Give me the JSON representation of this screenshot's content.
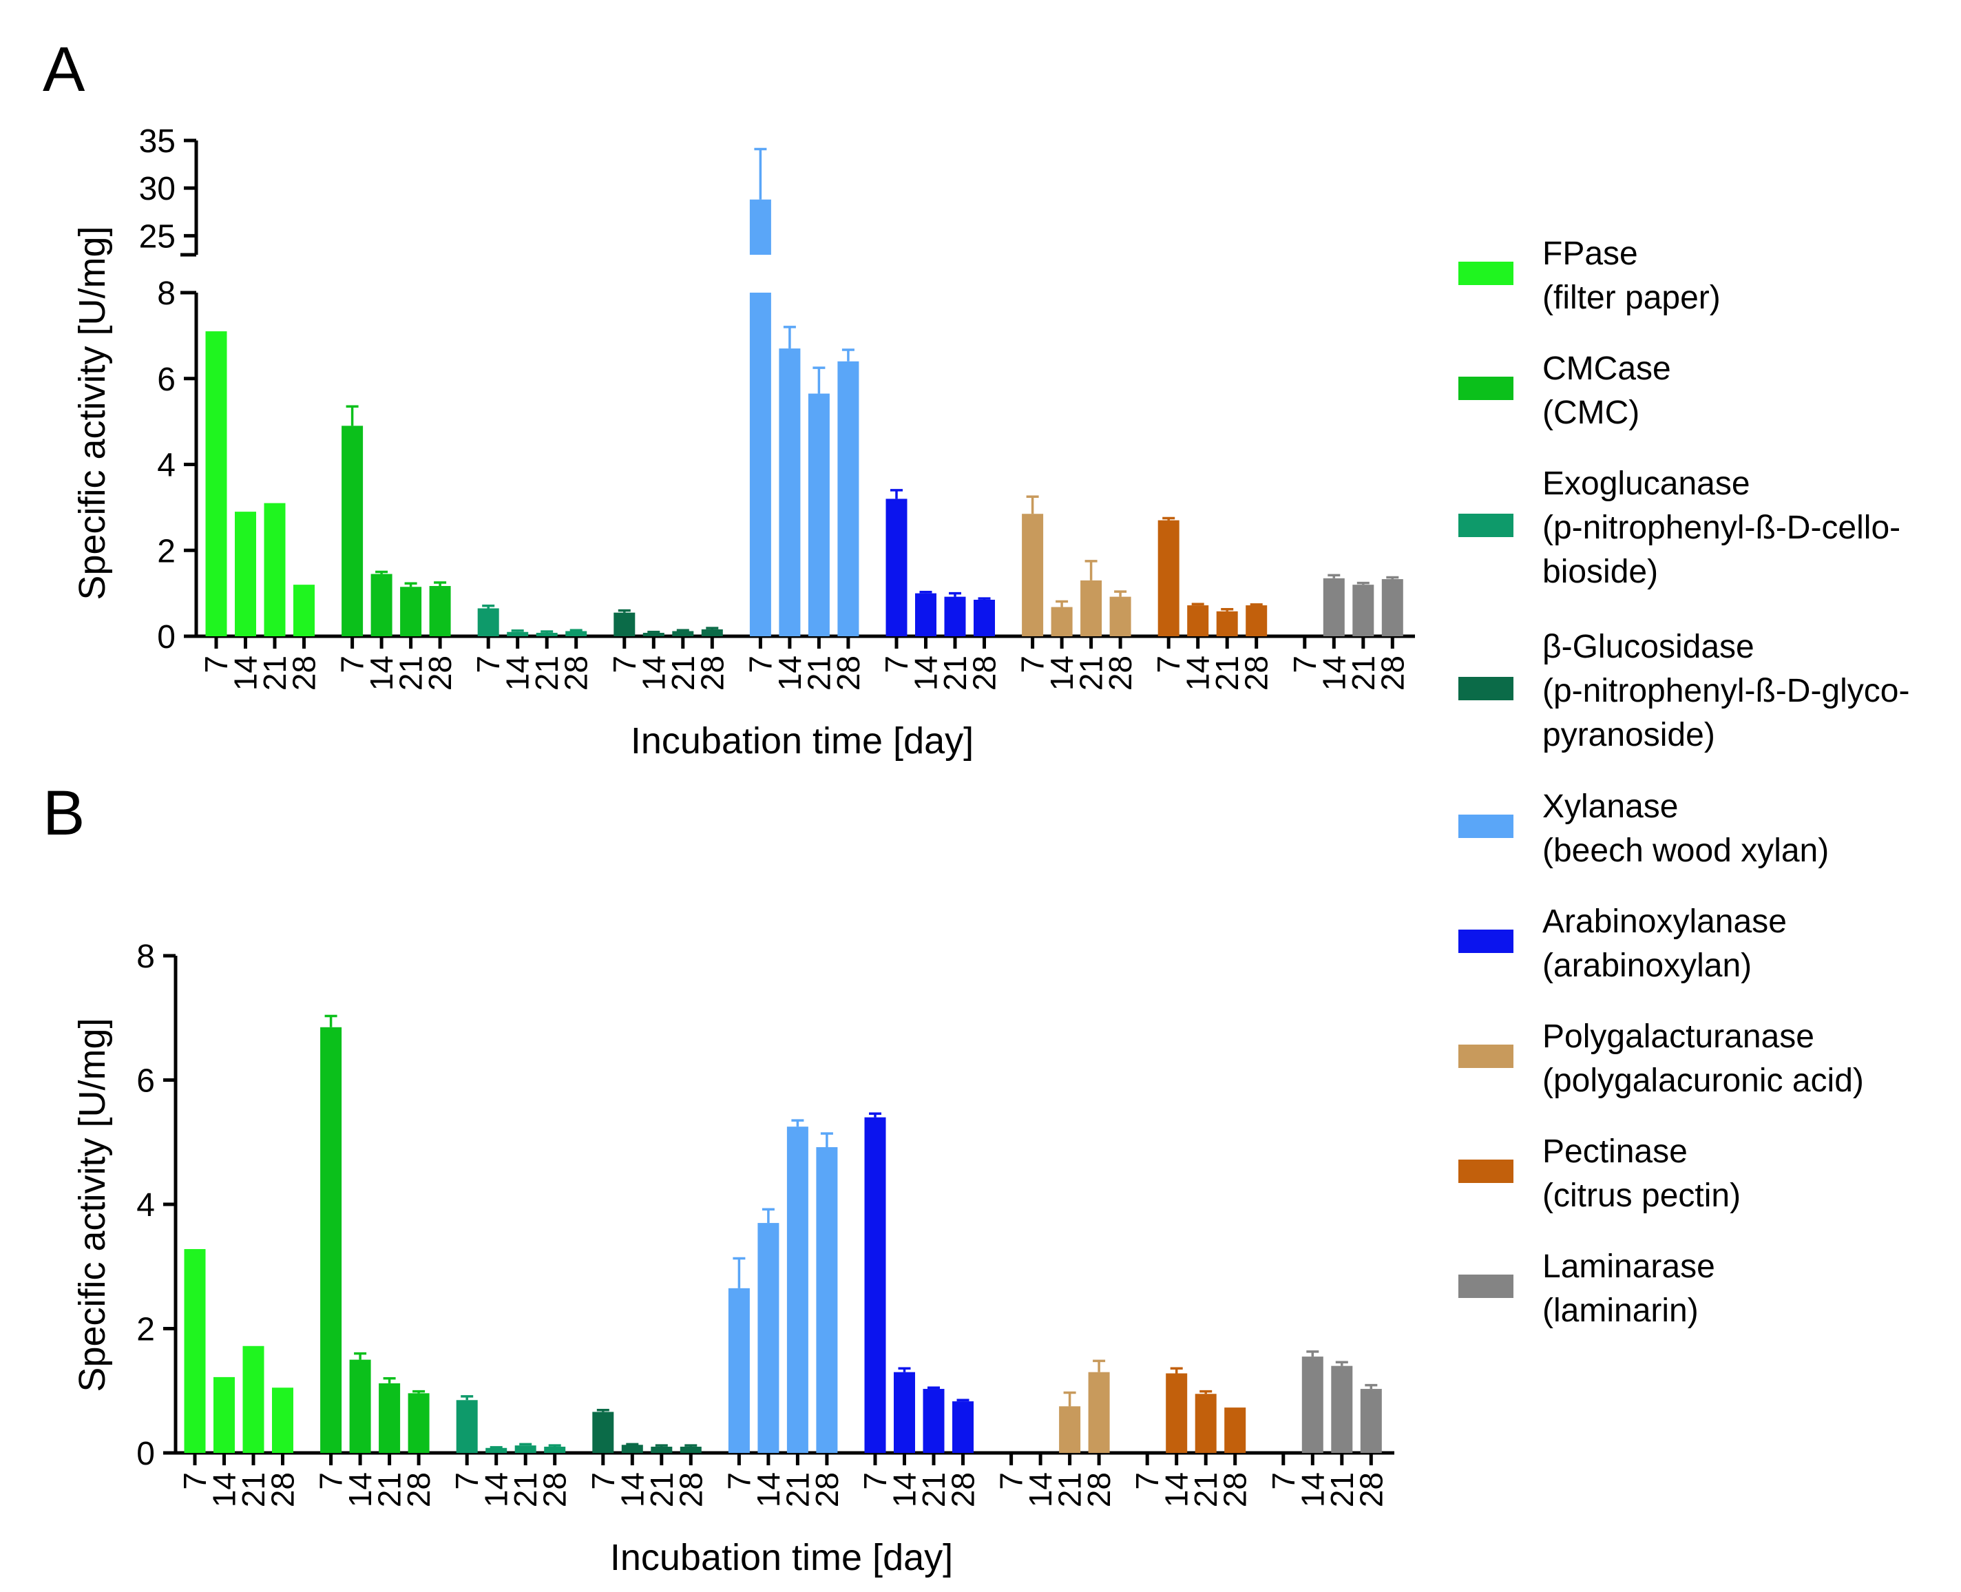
{
  "figure": {
    "panels": [
      "A",
      "B"
    ],
    "ylabel": "Specific activity [U/mg]",
    "xlabel": "Incubation time [day]"
  },
  "legend": [
    {
      "name": "FPase",
      "substrate": "(filter paper)",
      "color": "#1ff51f"
    },
    {
      "name": "CMCase",
      "substrate": "(CMC)",
      "color": "#0bc01b"
    },
    {
      "name": "Exoglucanase",
      "substrate": "(p-nitrophenyl-ß-D-cello-",
      "substrate_line2": "bioside)",
      "color": "#0e9a6a"
    },
    {
      "name": "β-Glucosidase",
      "substrate": "(p-nitrophenyl-ß-D-glyco-",
      "substrate_line2": "pyranoside)",
      "color": "#0b6b48"
    },
    {
      "name": "Xylanase",
      "substrate": "(beech wood xylan)",
      "color": "#5aa6f8"
    },
    {
      "name": "Arabinoxylanase",
      "substrate": "(arabinoxylan)",
      "color": "#0b14ee"
    },
    {
      "name": "Polygalacturanase",
      "substrate": "(polygalacuronic acid)",
      "color": "#c89a5c"
    },
    {
      "name": "Pectinase",
      "substrate": "(citrus pectin)",
      "color": "#c2600c"
    },
    {
      "name": "Laminarase",
      "substrate": "(laminarin)",
      "color": "#848484"
    }
  ],
  "chart_data": [
    {
      "panel": "A",
      "type": "bar",
      "title": "A",
      "xlabel": "Incubation time [day]",
      "ylabel": "Specific activity [U/mg]",
      "categories": [
        "7",
        "14",
        "21",
        "28"
      ],
      "ylim_lower": [
        0,
        8
      ],
      "yticks_lower": [
        0,
        2,
        4,
        6,
        8
      ],
      "ylim_upper": [
        23,
        35
      ],
      "yticks_upper": [
        25,
        30,
        35
      ],
      "axis_break": [
        8,
        23
      ],
      "series": [
        {
          "name": "FPase",
          "values": [
            7.1,
            2.9,
            3.1,
            1.2
          ],
          "errors": [
            0,
            0,
            0,
            0
          ]
        },
        {
          "name": "CMCase",
          "values": [
            4.9,
            1.45,
            1.15,
            1.17
          ],
          "errors": [
            0.45,
            0.05,
            0.08,
            0.08
          ]
        },
        {
          "name": "Exoglucanase",
          "values": [
            0.65,
            0.1,
            0.08,
            0.12
          ],
          "errors": [
            0.06,
            0.03,
            0.03,
            0.02
          ]
        },
        {
          "name": "β-Glucosidase",
          "values": [
            0.55,
            0.08,
            0.12,
            0.16
          ],
          "errors": [
            0.05,
            0.02,
            0.02,
            0.03
          ]
        },
        {
          "name": "Xylanase",
          "values": [
            28.8,
            6.7,
            5.65,
            6.4
          ],
          "errors": [
            5.3,
            0.5,
            0.6,
            0.27
          ]
        },
        {
          "name": "Arabinoxylanase",
          "values": [
            3.2,
            1.0,
            0.92,
            0.85
          ],
          "errors": [
            0.2,
            0.03,
            0.08,
            0.03
          ]
        },
        {
          "name": "Polygalacturanase",
          "values": [
            2.85,
            0.68,
            1.3,
            0.92
          ],
          "errors": [
            0.4,
            0.13,
            0.45,
            0.12
          ]
        },
        {
          "name": "Pectinase",
          "values": [
            2.7,
            0.72,
            0.58,
            0.72
          ],
          "errors": [
            0.05,
            0.03,
            0.05,
            0.02
          ]
        },
        {
          "name": "Laminarase",
          "values": [
            0,
            1.35,
            1.2,
            1.33
          ],
          "errors": [
            0,
            0.07,
            0.04,
            0.04
          ]
        }
      ]
    },
    {
      "panel": "B",
      "type": "bar",
      "title": "B",
      "xlabel": "Incubation time [day]",
      "ylabel": "Specific activity [U/mg]",
      "categories": [
        "7",
        "14",
        "21",
        "28"
      ],
      "ylim": [
        0,
        8
      ],
      "yticks": [
        0,
        2,
        4,
        6,
        8
      ],
      "series": [
        {
          "name": "FPase",
          "values": [
            3.28,
            1.22,
            1.72,
            1.05
          ],
          "errors": [
            0,
            0,
            0,
            0
          ]
        },
        {
          "name": "CMCase",
          "values": [
            6.85,
            1.5,
            1.12,
            0.96
          ],
          "errors": [
            0.18,
            0.1,
            0.08,
            0.03
          ]
        },
        {
          "name": "Exoglucanase",
          "values": [
            0.85,
            0.08,
            0.12,
            0.1
          ],
          "errors": [
            0.06,
            0.01,
            0.02,
            0.02
          ]
        },
        {
          "name": "β-Glucosidase",
          "values": [
            0.66,
            0.13,
            0.1,
            0.1
          ],
          "errors": [
            0.03,
            0.01,
            0.02,
            0.02
          ]
        },
        {
          "name": "Xylanase",
          "values": [
            2.65,
            3.7,
            5.25,
            4.92
          ],
          "errors": [
            0.48,
            0.22,
            0.1,
            0.22
          ]
        },
        {
          "name": "Arabinoxylanase",
          "values": [
            5.4,
            1.3,
            1.03,
            0.83
          ],
          "errors": [
            0.06,
            0.06,
            0.02,
            0.02
          ]
        },
        {
          "name": "Polygalacturanase",
          "values": [
            0,
            0,
            0.75,
            1.3
          ],
          "errors": [
            0,
            0,
            0.22,
            0.18
          ]
        },
        {
          "name": "Pectinase",
          "values": [
            0,
            1.28,
            0.95,
            0.73
          ],
          "errors": [
            0,
            0.08,
            0.04,
            0
          ]
        },
        {
          "name": "Laminarase",
          "values": [
            0,
            1.55,
            1.4,
            1.03
          ],
          "errors": [
            0,
            0.08,
            0.06,
            0.06
          ]
        }
      ]
    }
  ]
}
